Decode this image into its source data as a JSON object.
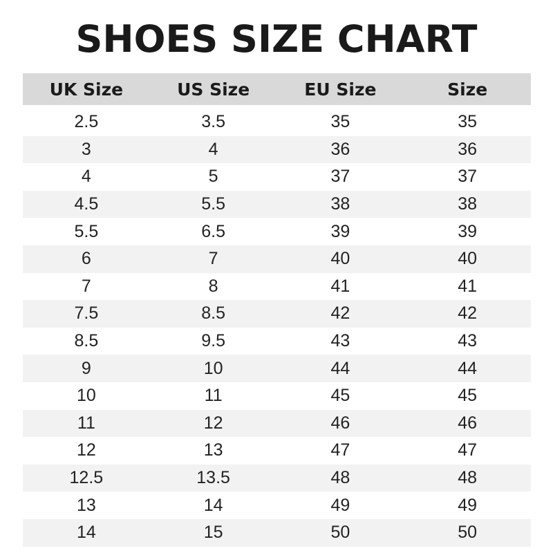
{
  "title": "SHOES SIZE CHART",
  "colors": {
    "header_bg": "#d9d9d9",
    "stripe_bg": "#f2f2f2",
    "text": "#1a1a1a"
  },
  "headers": [
    "UK Size",
    "US Size",
    "EU Size",
    "Size"
  ],
  "rows": [
    [
      "2.5",
      "3.5",
      "35",
      "35"
    ],
    [
      "3",
      "4",
      "36",
      "36"
    ],
    [
      "4",
      "5",
      "37",
      "37"
    ],
    [
      "4.5",
      "5.5",
      "38",
      "38"
    ],
    [
      "5.5",
      "6.5",
      "39",
      "39"
    ],
    [
      "6",
      "7",
      "40",
      "40"
    ],
    [
      "7",
      "8",
      "41",
      "41"
    ],
    [
      "7.5",
      "8.5",
      "42",
      "42"
    ],
    [
      "8.5",
      "9.5",
      "43",
      "43"
    ],
    [
      "9",
      "10",
      "44",
      "44"
    ],
    [
      "10",
      "11",
      "45",
      "45"
    ],
    [
      "11",
      "12",
      "46",
      "46"
    ],
    [
      "12",
      "13",
      "47",
      "47"
    ],
    [
      "12.5",
      "13.5",
      "48",
      "48"
    ],
    [
      "13",
      "14",
      "49",
      "49"
    ],
    [
      "14",
      "15",
      "50",
      "50"
    ]
  ]
}
